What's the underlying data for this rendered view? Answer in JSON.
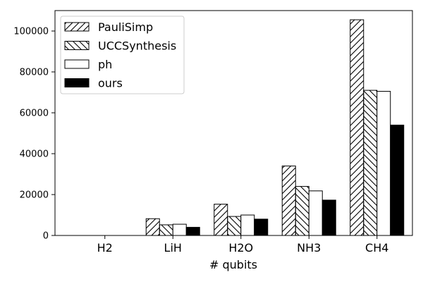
{
  "chart_data": {
    "type": "bar",
    "xlabel": "# qubits",
    "ylabel": "",
    "title": "",
    "categories": [
      "H2",
      "LiH",
      "H2O",
      "NH3",
      "CH4"
    ],
    "ylim": [
      0,
      110000
    ],
    "yticks": [
      0,
      20000,
      40000,
      60000,
      80000,
      100000
    ],
    "grid": false,
    "legend_position": "top-left",
    "series": [
      {
        "name": "PauliSimp",
        "pattern": "forward-diagonal-hatch",
        "values": [
          0,
          8200,
          15300,
          34000,
          105500
        ]
      },
      {
        "name": "UCCSynthesis",
        "pattern": "backward-diagonal-hatch",
        "values": [
          0,
          5200,
          9300,
          24000,
          71000
        ]
      },
      {
        "name": "ph",
        "pattern": "empty",
        "values": [
          0,
          5500,
          10000,
          21800,
          70500
        ]
      },
      {
        "name": "ours",
        "pattern": "solid-black",
        "values": [
          0,
          4000,
          8000,
          17300,
          54000
        ]
      }
    ]
  }
}
